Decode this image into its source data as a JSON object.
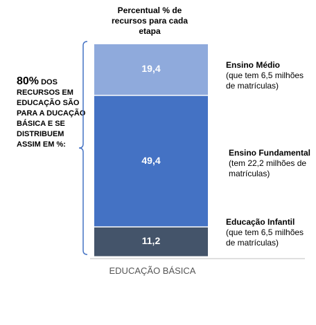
{
  "chart_data": {
    "type": "bar",
    "stacked": true,
    "title": "Percentual % de recursos para cada etapa",
    "categories": [
      "EDUCAÇÃO BÁSICA"
    ],
    "series": [
      {
        "name": "Educação Infantil",
        "values": [
          11.2
        ],
        "label": "11,2",
        "detail": "(que tem 6,5 milhões de matrículas)",
        "color": "#44546a"
      },
      {
        "name": "Ensino Fundamental",
        "values": [
          49.4
        ],
        "label": "49,4",
        "detail": "(tem 22,2 milhões de matrículas)",
        "color": "#4472c4"
      },
      {
        "name": "Ensino Médio",
        "values": [
          19.4
        ],
        "label": "19,4",
        "detail": "(que tem  6,5 milhões de matrículas)",
        "color": "#8faadc"
      }
    ],
    "annotation": {
      "highlight": "80%",
      "text": "dos recursos em Educação são para a Ducação Básica e se distribuem assim em %:"
    }
  }
}
